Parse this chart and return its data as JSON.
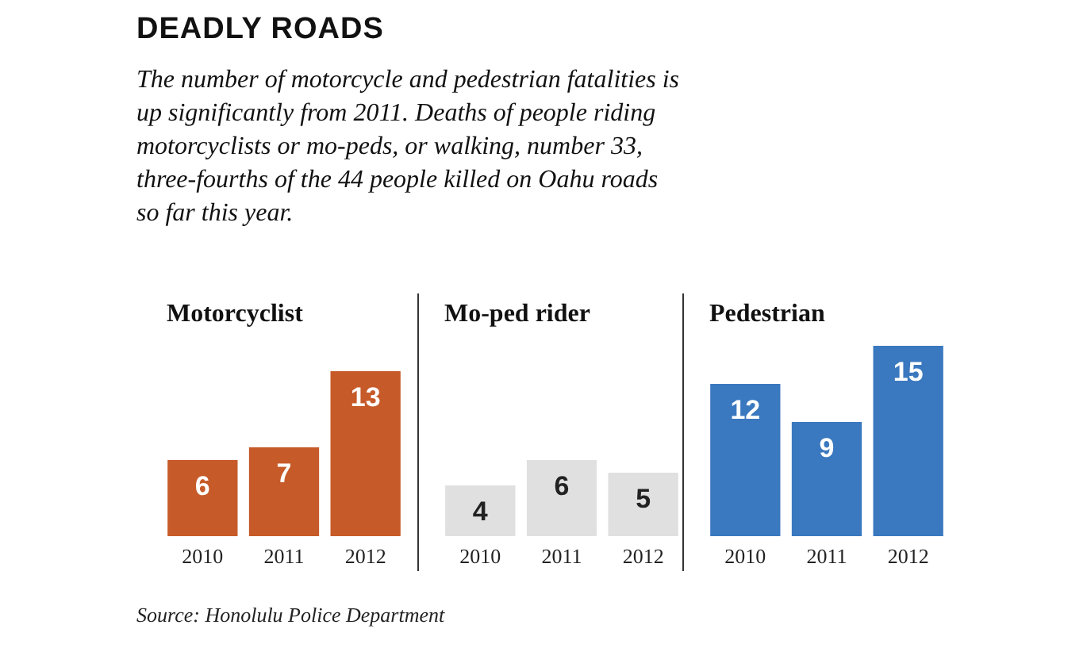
{
  "chart_data": [
    {
      "type": "bar",
      "title": "Motorcyclist",
      "categories": [
        "2010",
        "2011",
        "2012"
      ],
      "values": [
        6,
        7,
        13
      ],
      "color": "#c65a28",
      "data_labels": true,
      "annotations": [
        "DEADLY ROADS",
        "The number of motorcycle and pedestrian fatalities is up significantly from 2011. Deaths of people riding motorcyclists or mo-peds, or walking, number 33, three-fourths of the 44 people killed on Oahu roads so far this year.",
        "Source: Honolulu Police Department"
      ]
    },
    {
      "type": "bar",
      "title": "Mo-ped rider",
      "categories": [
        "2010",
        "2011",
        "2012"
      ],
      "values": [
        4,
        6,
        5
      ],
      "color": "#e0e0e0",
      "data_labels": true
    },
    {
      "type": "bar",
      "title": "Pedestrian",
      "categories": [
        "2010",
        "2011",
        "2012"
      ],
      "values": [
        12,
        9,
        15
      ],
      "color": "#3a78bf",
      "data_labels": true
    }
  ]
}
